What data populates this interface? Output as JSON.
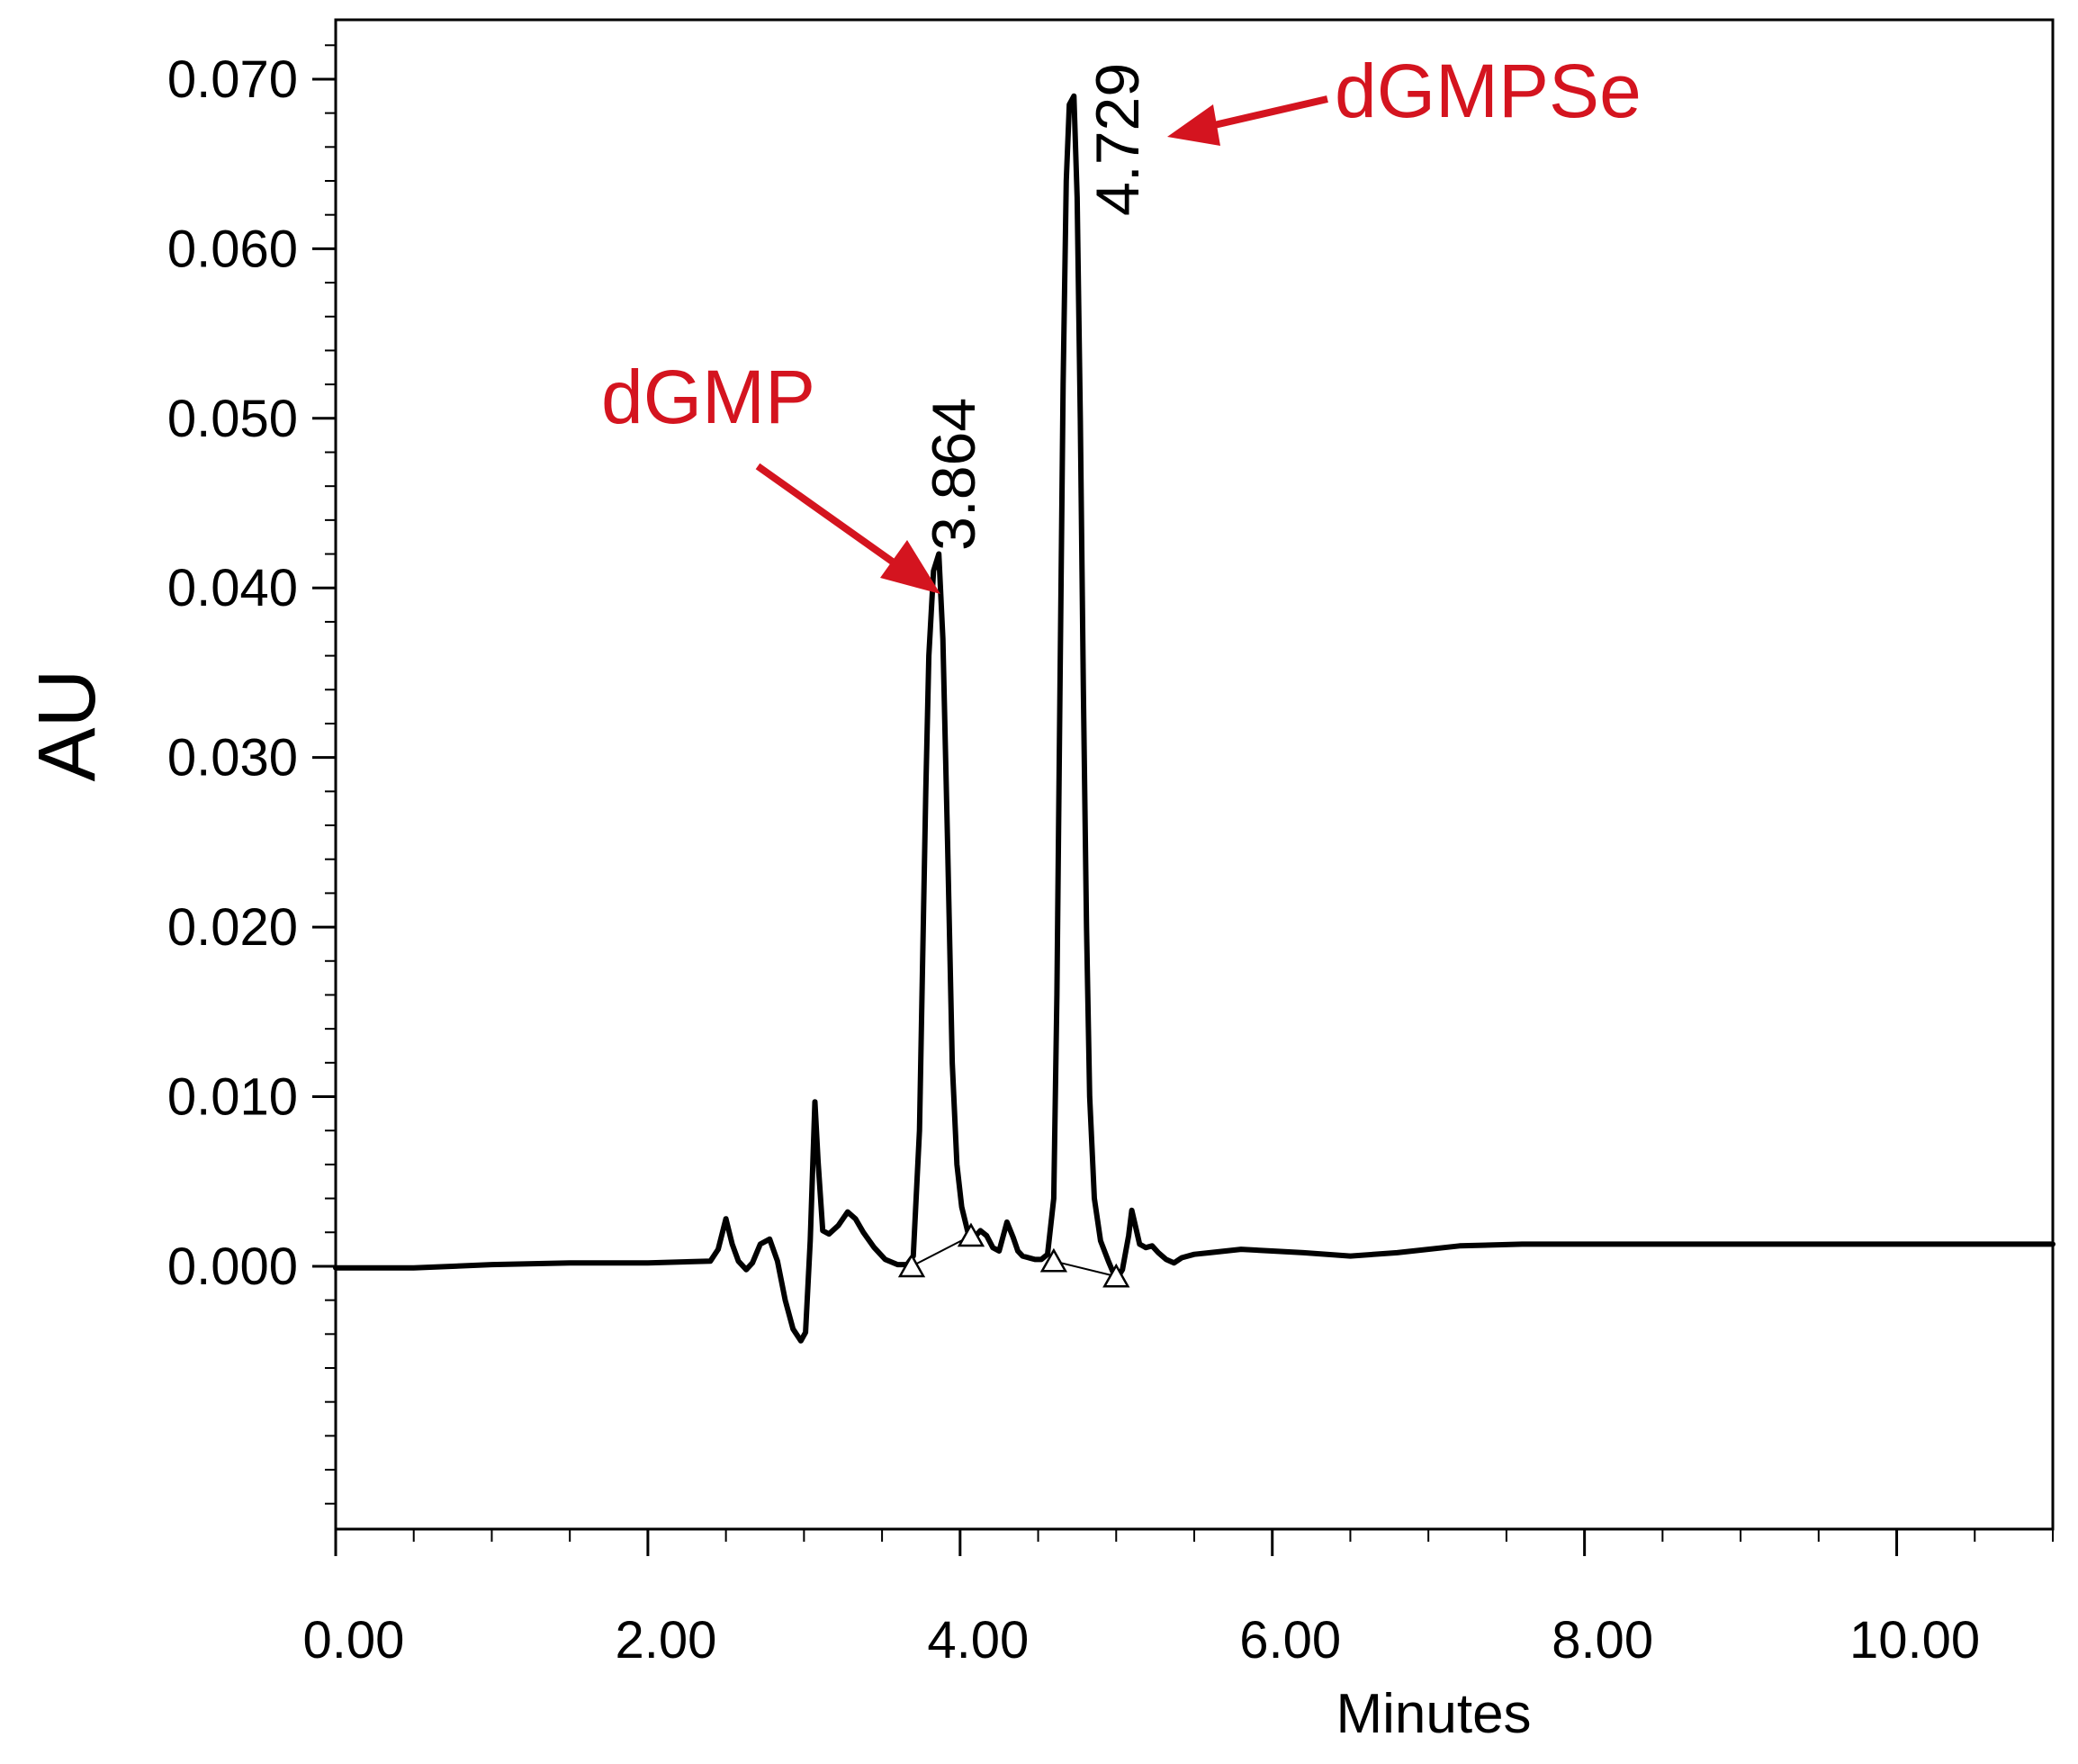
{
  "chart_data": {
    "type": "line",
    "title": "",
    "xlabel": "Minutes",
    "ylabel": "AU",
    "xlim": [
      0,
      11.0
    ],
    "ylim": [
      -0.0155,
      0.0735
    ],
    "x_ticks": [
      0,
      2,
      4,
      6,
      8,
      10
    ],
    "x_tick_labels": [
      "0.00",
      "2.00",
      "4.00",
      "6.00",
      "8.00",
      "10.00"
    ],
    "x_minor_step": 0.5,
    "y_ticks": [
      0.0,
      0.01,
      0.02,
      0.03,
      0.04,
      0.05,
      0.06,
      0.07
    ],
    "y_tick_labels": [
      "0.000",
      "0.010",
      "0.020",
      "0.030",
      "0.040",
      "0.050",
      "0.060",
      "0.070"
    ],
    "y_minor_step": 0.002,
    "grid": false,
    "line_color": "#000000",
    "annotation_color": "#d4141f",
    "series": [
      {
        "x": [
          0.0,
          0.5,
          1.0,
          1.5,
          2.0,
          2.4,
          2.45,
          2.5,
          2.54,
          2.58,
          2.63,
          2.67,
          2.72,
          2.78,
          2.83,
          2.88,
          2.93,
          2.98,
          3.01,
          3.04,
          3.07,
          3.09,
          3.12,
          3.16,
          3.22,
          3.28,
          3.33,
          3.38,
          3.45,
          3.52,
          3.6,
          3.66,
          3.7,
          3.74,
          3.76,
          3.78,
          3.8,
          3.83,
          3.864,
          3.89,
          3.92,
          3.95,
          3.98,
          4.01,
          4.05,
          4.09,
          4.13,
          4.17,
          4.21,
          4.25,
          4.3,
          4.34,
          4.37,
          4.4,
          4.44,
          4.48,
          4.52,
          4.56,
          4.6,
          4.62,
          4.64,
          4.66,
          4.68,
          4.7,
          4.729,
          4.75,
          4.77,
          4.79,
          4.81,
          4.83,
          4.86,
          4.9,
          4.95,
          5.0,
          5.04,
          5.08,
          5.1,
          5.12,
          5.15,
          5.19,
          5.23,
          5.27,
          5.32,
          5.37,
          5.42,
          5.5,
          5.6,
          5.8,
          6.0,
          6.2,
          6.5,
          6.8,
          7.2,
          7.6,
          8.0,
          8.5,
          9.0,
          9.5,
          10.0,
          10.5,
          11.0
        ],
        "y": [
          -0.0001,
          -0.0001,
          0.0001,
          0.0002,
          0.0002,
          0.0003,
          0.001,
          0.0028,
          0.0013,
          0.0003,
          -0.0002,
          0.0002,
          0.0013,
          0.0016,
          0.0003,
          -0.002,
          -0.0037,
          -0.0044,
          -0.0039,
          0.0015,
          0.0097,
          0.0062,
          0.0021,
          0.0019,
          0.0024,
          0.0032,
          0.0028,
          0.002,
          0.0011,
          0.0004,
          0.0001,
          0.0001,
          0.0006,
          0.008,
          0.018,
          0.028,
          0.036,
          0.041,
          0.042,
          0.037,
          0.025,
          0.012,
          0.006,
          0.0035,
          0.002,
          0.0017,
          0.0021,
          0.0018,
          0.0011,
          0.0009,
          0.0026,
          0.0017,
          0.0009,
          0.0006,
          0.0005,
          0.0004,
          0.0004,
          0.0007,
          0.004,
          0.016,
          0.034,
          0.052,
          0.064,
          0.0685,
          0.069,
          0.063,
          0.05,
          0.034,
          0.02,
          0.01,
          0.004,
          0.0015,
          0.0003,
          -0.0008,
          -0.0002,
          0.0018,
          0.0033,
          0.0025,
          0.0013,
          0.0011,
          0.0012,
          0.0008,
          0.0004,
          0.0002,
          0.0005,
          0.0007,
          0.0008,
          0.001,
          0.0009,
          0.0008,
          0.0006,
          0.0008,
          0.0012,
          0.0013,
          0.0013,
          0.0013,
          0.0013,
          0.0013,
          0.0013,
          0.0013,
          0.0013
        ]
      }
    ],
    "baselines": [
      {
        "x": [
          3.69,
          4.07
        ],
        "y": [
          0.0,
          0.0018
        ]
      },
      {
        "x": [
          4.6,
          5.0
        ],
        "y": [
          0.0003,
          -0.0006
        ]
      }
    ],
    "integration_markers": [
      {
        "x": 3.69,
        "y": 0.0
      },
      {
        "x": 4.07,
        "y": 0.0018
      },
      {
        "x": 4.6,
        "y": 0.0003
      },
      {
        "x": 5.0,
        "y": -0.0006
      }
    ],
    "peak_labels": [
      {
        "text": "3.864",
        "x": 3.864,
        "y": 0.042
      },
      {
        "text": "4.729",
        "x": 4.729,
        "y": 0.069
      }
    ],
    "annotations": [
      {
        "text": "dGMP",
        "points_to_peak": "3.864"
      },
      {
        "text": "dGMPSe",
        "points_to_peak": "4.729"
      }
    ]
  }
}
